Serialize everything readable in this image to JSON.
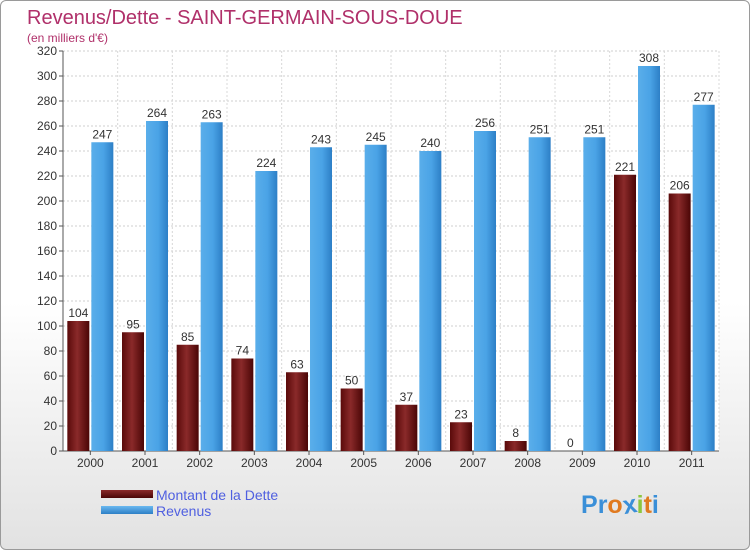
{
  "chart_data": {
    "type": "bar",
    "title": "Revenus/Dette - SAINT-GERMAIN-SOUS-DOUE",
    "subtitle": "(en milliers d'€)",
    "categories": [
      "2000",
      "2001",
      "2002",
      "2003",
      "2004",
      "2005",
      "2006",
      "2007",
      "2008",
      "2009",
      "2010",
      "2011"
    ],
    "series": [
      {
        "name": "Montant de la Dette",
        "values": [
          104,
          95,
          85,
          74,
          63,
          50,
          37,
          23,
          8,
          0,
          221,
          206
        ],
        "color": "#7a1a1a"
      },
      {
        "name": "Revenus",
        "values": [
          247,
          264,
          263,
          224,
          243,
          245,
          240,
          256,
          251,
          251,
          308,
          277
        ],
        "color": "#4aa3e6"
      }
    ],
    "ylim": [
      0,
      320
    ],
    "yticks": [
      0,
      20,
      40,
      60,
      80,
      100,
      120,
      140,
      160,
      180,
      200,
      220,
      240,
      260,
      280,
      300,
      320
    ],
    "grid": true,
    "legend_position": "bottom-left"
  },
  "logo": {
    "text": "Proxiti",
    "letters": [
      {
        "ch": "P",
        "color": "#3a8fd8"
      },
      {
        "ch": "r",
        "color": "#3a8fd8"
      },
      {
        "ch": "o",
        "color": "#e07a20"
      },
      {
        "ch": "x",
        "color": "#3a8fd8"
      },
      {
        "ch": "i",
        "color": "#8cc63f"
      },
      {
        "ch": "t",
        "color": "#e07a20"
      },
      {
        "ch": "i",
        "color": "#3a8fd8"
      }
    ]
  }
}
